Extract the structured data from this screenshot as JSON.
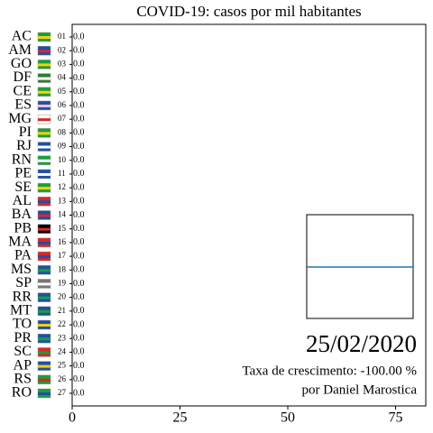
{
  "chart_data": {
    "type": "bar",
    "orientation": "horizontal",
    "title": "COVID-19: casos por mil habitantes",
    "categories": [
      "AC",
      "AM",
      "GO",
      "DF",
      "CE",
      "ES",
      "MG",
      "PI",
      "RJ",
      "RN",
      "PE",
      "SE",
      "AL",
      "BA",
      "PB",
      "MA",
      "PA",
      "MS",
      "SP",
      "RR",
      "MT",
      "TO",
      "PR",
      "SC",
      "AP",
      "RS",
      "RO"
    ],
    "rank_labels": [
      "01",
      "02",
      "03",
      "04",
      "05",
      "06",
      "07",
      "08",
      "09",
      "10",
      "11",
      "12",
      "13",
      "14",
      "15",
      "16",
      "17",
      "18",
      "19",
      "20",
      "21",
      "22",
      "23",
      "24",
      "25",
      "26",
      "27"
    ],
    "values": [
      0,
      0,
      0,
      0,
      0,
      0,
      0,
      0,
      0,
      0,
      0,
      0,
      0,
      0,
      0,
      0,
      0,
      0,
      0,
      0,
      0,
      0,
      0,
      0,
      0,
      0,
      0
    ],
    "value_labels": [
      "0.0",
      "0.0",
      "0.0",
      "0.0",
      "0.0",
      "0.0",
      "0.0",
      "0.0",
      "0.0",
      "0.0",
      "0.0",
      "0.0",
      "0.0",
      "0.0",
      "0.0",
      "0.0",
      "0.0",
      "0.0",
      "0.0",
      "0.0",
      "0.0",
      "0.0",
      "0.0",
      "0.0",
      "0.0",
      "0.0",
      "0.0"
    ],
    "color": "#1f77b4",
    "xlim": [
      0,
      82
    ],
    "xticks": [
      0,
      25,
      50,
      75
    ],
    "date": "25/02/2020",
    "growth_text": "Taxa de crescimento: -100.00 %",
    "author": "por Daniel Marostica"
  }
}
